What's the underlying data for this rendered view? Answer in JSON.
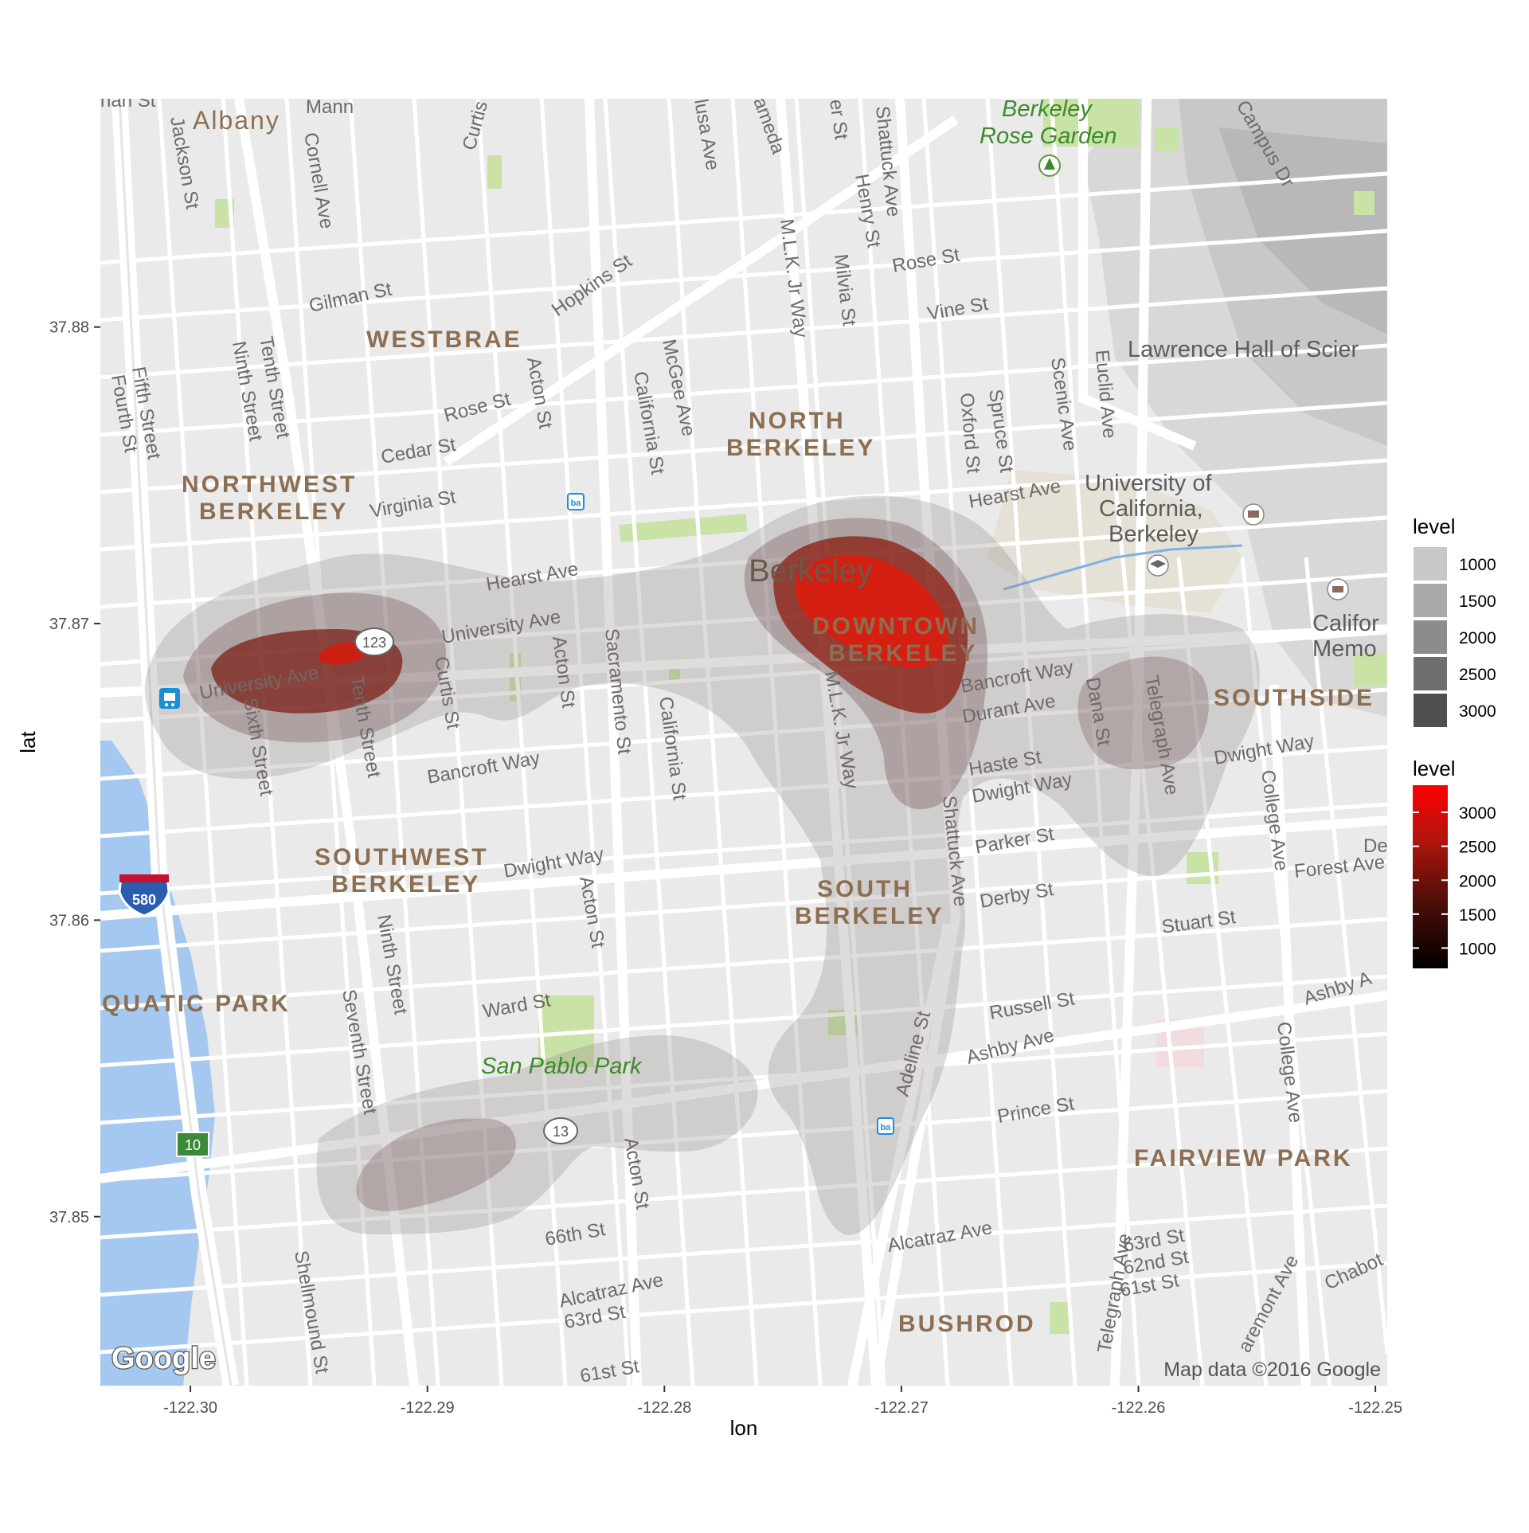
{
  "map": {
    "labels": {
      "albany": "Albany",
      "westbrae": "WESTBRAE",
      "north_berkeley_1": "NORTH",
      "north_berkeley_2": "BERKELEY",
      "northwest_berkeley_1": "NORTHWEST",
      "northwest_berkeley_2": "BERKELEY",
      "southwest_berkeley_1": "SOUTHWEST",
      "southwest_berkeley_2": "BERKELEY",
      "south_berkeley_1": "SOUTH",
      "south_berkeley_2": "BERKELEY",
      "downtown_1": "DOWNTOWN",
      "downtown_2": "BERKELEY",
      "southside": "SOUTHSIDE",
      "fairview_park": "FAIRVIEW PARK",
      "bushrod": "BUSHROD",
      "aquatic_park": "QUATIC PARK",
      "berkeley": "Berkeley",
      "rose_garden_1": "Berkeley",
      "rose_garden_2": "Rose Garden",
      "san_pablo_park": "San Pablo Park",
      "lawrence_hall": "Lawrence Hall of Scier",
      "uc_1": "University of",
      "uc_2": "California,",
      "uc_3": "Berkeley",
      "calif_memo_1": "Califor",
      "calif_memo_2": "Memo",
      "de": "De",
      "gilman_st": "Gilman St",
      "hopkins_st": "Hopkins St",
      "rose_st_w": "Rose St",
      "cedar_st": "Cedar St",
      "virginia_st": "Virginia St",
      "hearst_ave_w": "Hearst Ave",
      "hearst_ave_e": "Hearst Ave",
      "university_ave_e": "University Ave",
      "university_ave_w": "University Ave",
      "bancroft_way_w": "Bancroft Way",
      "bancroft_way_e": "Bancroft Way",
      "durant_ave": "Durant Ave",
      "haste_st": "Haste St",
      "dwight_way_w": "Dwight Way",
      "dwight_way_c": "Dwight Way",
      "dwight_way_e": "Dwight Way",
      "parker_st": "Parker St",
      "derby_st": "Derby St",
      "stuart_st": "Stuart St",
      "forest_ave": "Forest Ave",
      "russell_st": "Russell St",
      "ashby_ave": "Ashby Ave",
      "ashby_ave_e": "Ashby A",
      "prince_st": "Prince St",
      "ward_st": "Ward St",
      "alcatraz_ave_e": "Alcatraz Ave",
      "alcatraz_ave_w": "Alcatraz Ave",
      "sixty_sixth": "66th St",
      "sixty_third_w": "63rd St",
      "sixty_third_e": "63rd St",
      "sixty_second": "62nd St",
      "sixty_first": "61st St",
      "sixty_first_w": "61st St",
      "rose_st_e": "Rose St",
      "vine_st": "Vine St",
      "jackson_st": "Jackson St",
      "cornell_ave": "Cornell Ave",
      "curtis_n": "Curtis",
      "fifth_st": "Fifth Street",
      "fourth_st": "Fourth St",
      "ninth_st_n": "Ninth Street",
      "tenth_st_n": "Tenth Street",
      "acton_st_n": "Acton St",
      "california_st_n": "California St",
      "mcgee_ave": "McGee Ave",
      "mlk_n": "M.L.K. Jr Way",
      "milvia_st": "Milvia St",
      "henry_st": "Henry St",
      "shattuck_ave_n": "Shattuck Ave",
      "oxford_st": "Oxford St",
      "spruce_st": "Spruce St",
      "scenic_ave": "Scenic Ave",
      "euclid_ave": "Euclid Ave",
      "campus_dr": "Campus Dr",
      "sixth_st": "Sixth Street",
      "tenth_st": "Tenth Street",
      "curtis_st": "Curtis St",
      "acton_st_c": "Acton St",
      "sacramento_st": "Sacramento St",
      "california_st_c": "California St",
      "mlk_s": "M.L.K. Jr Way",
      "shattuck_ave_s": "Shattuck Ave",
      "dana_st": "Dana St",
      "telegraph_ave_n": "Telegraph Ave",
      "college_ave_n": "College Ave",
      "acton_st_s": "Acton St",
      "ninth_st_s": "Ninth Street",
      "seventh_st": "Seventh Street",
      "adeline_st": "Adeline St",
      "college_ave_s": "College Ave",
      "telegraph_ave_s": "Telegraph Ave",
      "claremont_ave": "aremont Ave",
      "acton_st_ss": "Acton St",
      "shellmound_st": "Shellmound St",
      "chabot": "Chabot",
      "alameda": "ameda",
      "usa_ave": "lusa Ave",
      "er_st": "er St",
      "han_st": "han St",
      "mann": "Mann"
    },
    "highways": [
      {
        "name": "580-shield",
        "text": "580"
      },
      {
        "name": "123-shield",
        "text": "123"
      },
      {
        "name": "13-shield",
        "text": "13"
      },
      {
        "name": "10-shield",
        "text": "10"
      }
    ],
    "google_logo": "Google",
    "attribution": "Map data ©2016 Google"
  },
  "chart_data": {
    "type": "density_contour_map",
    "xlabel": "lon",
    "ylabel": "lat",
    "xlim": [
      -122.3038,
      -122.2495
    ],
    "ylim": [
      37.8443,
      37.8877
    ],
    "x_ticks": [
      -122.3,
      -122.29,
      -122.28,
      -122.27,
      -122.26,
      -122.25
    ],
    "x_tick_labels": [
      "-122.30",
      "-122.29",
      "-122.28",
      "-122.27",
      "-122.26",
      "-122.25"
    ],
    "y_ticks": [
      37.85,
      37.86,
      37.87,
      37.88
    ],
    "y_tick_labels": [
      "37.85",
      "37.86",
      "37.87",
      "37.88"
    ],
    "legend_alpha": {
      "title": "level",
      "labels": [
        "1000",
        "1500",
        "2000",
        "2500",
        "3000"
      ],
      "colors": [
        "#c8c8c8",
        "#a9a9a9",
        "#8c8c8c",
        "#6e6e6e",
        "#4f4f4f"
      ]
    },
    "legend_fill": {
      "title": "level",
      "labels": [
        "3000",
        "2500",
        "2000",
        "1500",
        "1000"
      ],
      "values": [
        3000,
        2500,
        2000,
        1500,
        1000
      ],
      "range": [
        700,
        3400
      ],
      "gradient": [
        "#000000",
        "#5a100b",
        "#b0150d",
        "#ff0000"
      ]
    },
    "hotspots": [
      {
        "name": "downtown-berkeley",
        "lon": -122.2715,
        "lat": 37.8705,
        "peak_level": 3400
      },
      {
        "name": "university-ave-west",
        "lon": -122.294,
        "lat": 37.8685,
        "peak_level": 3000
      },
      {
        "name": "southside-telegraph",
        "lon": -122.2585,
        "lat": 37.8665,
        "peak_level": 1500
      },
      {
        "name": "san-pablo-park-south",
        "lon": -122.291,
        "lat": 37.8515,
        "peak_level": 1500
      },
      {
        "name": "adeline-st",
        "lon": -122.2725,
        "lat": 37.856,
        "peak_level": 1000
      }
    ]
  }
}
